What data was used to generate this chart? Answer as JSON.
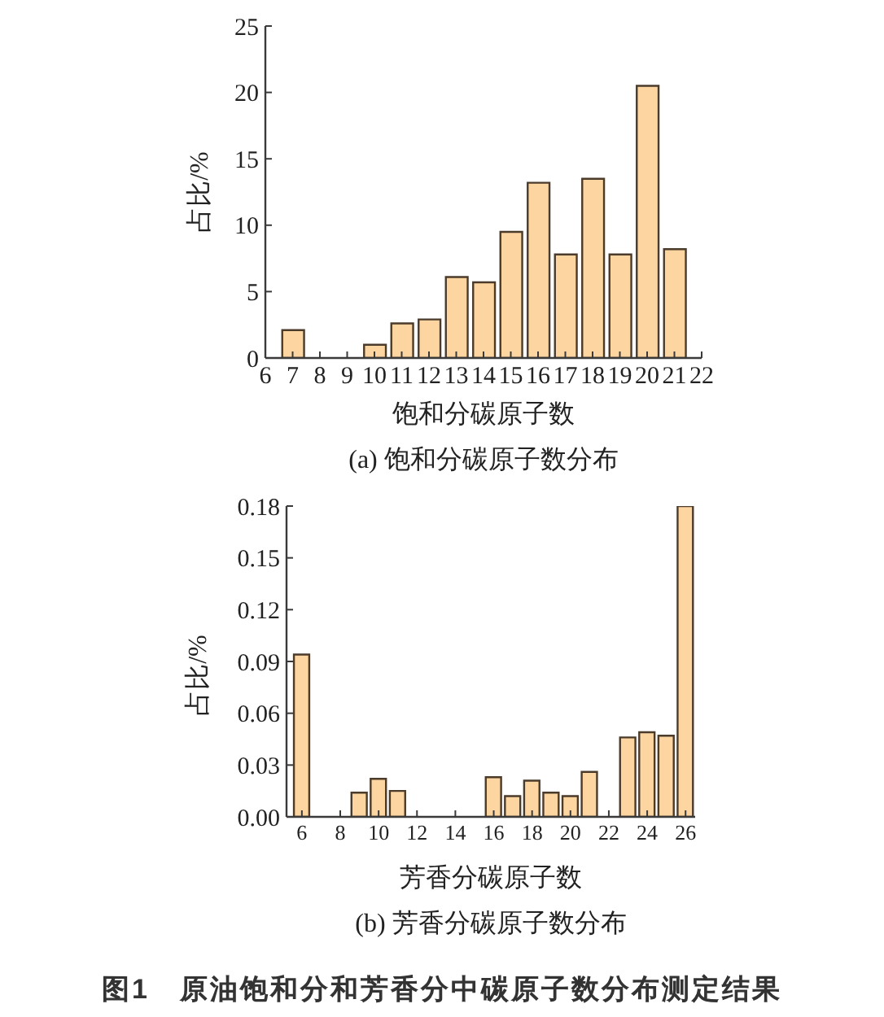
{
  "chart_data": [
    {
      "type": "bar",
      "title": "(a) 饱和分碳原子数分布",
      "xlabel": "饱和分碳原子数",
      "ylabel": "占比/%",
      "x": [
        7,
        10,
        11,
        12,
        13,
        14,
        15,
        16,
        17,
        18,
        19,
        20,
        21
      ],
      "values": [
        2.1,
        1.0,
        2.6,
        2.9,
        6.1,
        5.7,
        9.5,
        13.2,
        7.8,
        13.5,
        7.8,
        20.5,
        8.2
      ],
      "color": "#fcd5a0",
      "xlim": [
        6,
        22
      ],
      "xticks": [
        6,
        7,
        8,
        9,
        10,
        11,
        12,
        13,
        14,
        15,
        16,
        17,
        18,
        19,
        20,
        21,
        22
      ],
      "ylim": [
        0,
        25
      ],
      "yticks": [
        0,
        5,
        10,
        15,
        20,
        25
      ]
    },
    {
      "type": "bar",
      "title": "(b) 芳香分碳原子数分布",
      "xlabel": "芳香分碳原子数",
      "ylabel": "占比/%",
      "annotations": [
        "图1　原油饱和分和芳香分中碳原子数分布测定结果"
      ],
      "x": [
        6,
        9,
        10,
        11,
        16,
        17,
        18,
        19,
        20,
        21,
        23,
        24,
        25,
        26
      ],
      "values": [
        0.094,
        0.014,
        0.022,
        0.015,
        0.023,
        0.012,
        0.021,
        0.014,
        0.012,
        0.026,
        0.046,
        0.049,
        0.047,
        0.18
      ],
      "color": "#fcd5a0",
      "xlim": [
        5.2,
        26.5
      ],
      "xticks": [
        6,
        8,
        10,
        12,
        14,
        16,
        18,
        20,
        22,
        24,
        26
      ],
      "ylim": [
        0,
        0.18
      ],
      "yticks": [
        {
          "value": 0,
          "label": "0.00"
        },
        0.03,
        0.06,
        0.09,
        0.12,
        0.15,
        0.18
      ]
    }
  ]
}
